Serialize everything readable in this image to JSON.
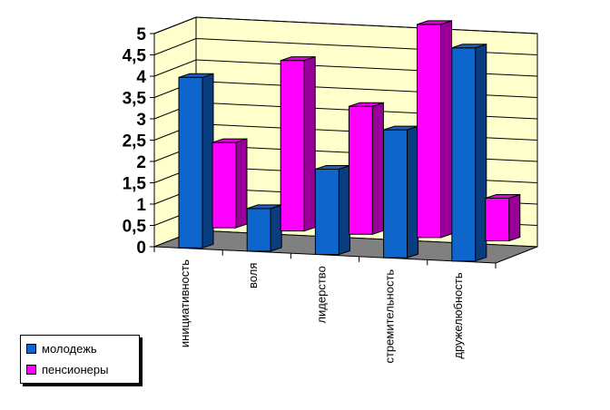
{
  "chart_data": {
    "type": "bar",
    "categories": [
      "инициативность",
      "воля",
      "лидерство",
      "стремительность",
      "дружелюбность"
    ],
    "series": [
      {
        "name": "молодежь",
        "values": [
          4.0,
          1.0,
          2.0,
          3.0,
          5.0
        ],
        "color": "#0E66CC",
        "side": "#0A3D80",
        "top": "#1F5FB8"
      },
      {
        "name": "пенсионеры",
        "values": [
          2.0,
          4.0,
          3.0,
          5.0,
          1.0
        ],
        "color": "#FF00FF",
        "side": "#990099",
        "top": "#E000E0"
      }
    ],
    "y_ticks": [
      "0",
      "0,5",
      "1",
      "1,5",
      "2",
      "2,5",
      "3",
      "3,5",
      "4",
      "4,5",
      "5"
    ],
    "ylim": [
      0,
      5
    ],
    "wall_color": "#FFFFCC",
    "floor_color": "#808080",
    "legend_position": "bottom-left"
  }
}
